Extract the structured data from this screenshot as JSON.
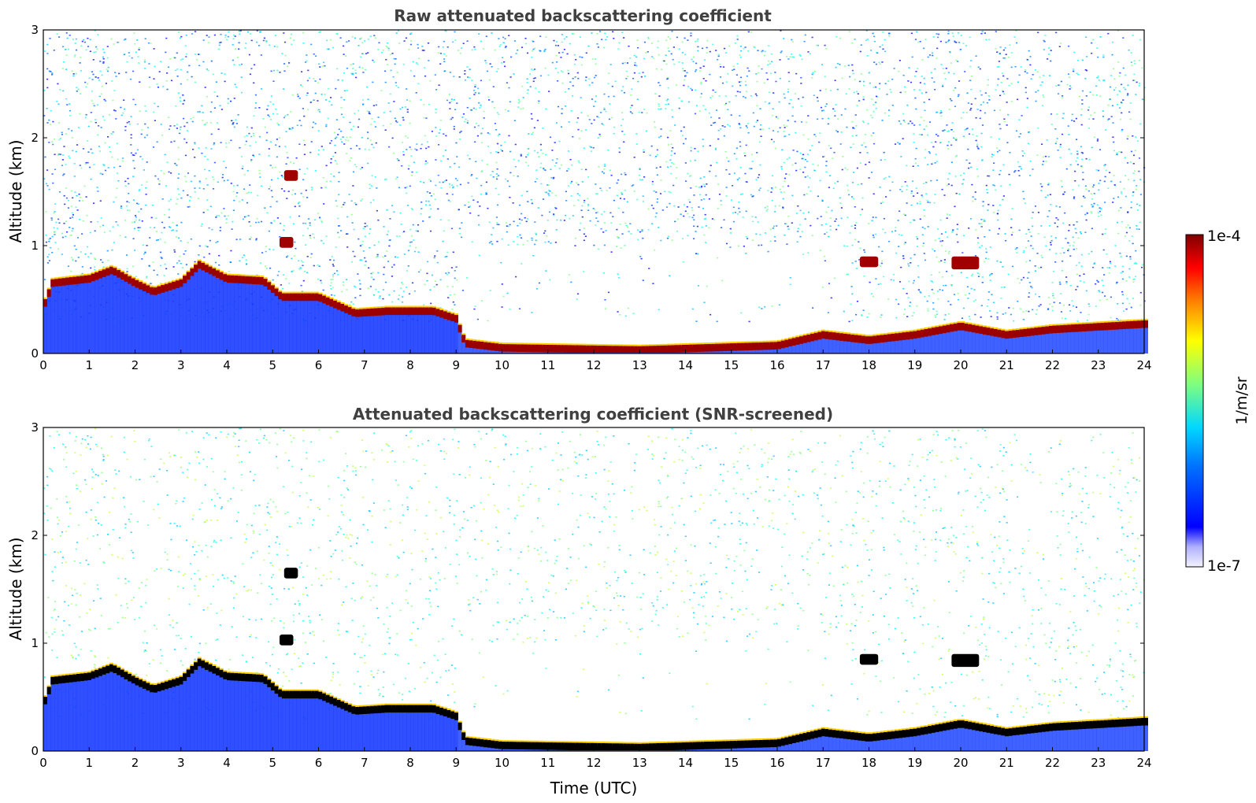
{
  "chart_data": [
    {
      "type": "heatmap",
      "title": "Raw attenuated backscattering coefficient",
      "xlabel": "",
      "ylabel": "Altitude (km)",
      "xlim": [
        0,
        24
      ],
      "ylim": [
        0,
        3
      ],
      "x_ticks": [
        "0",
        "1",
        "2",
        "3",
        "4",
        "5",
        "6",
        "7",
        "8",
        "9",
        "10",
        "11",
        "12",
        "13",
        "14",
        "15",
        "16",
        "17",
        "18",
        "19",
        "20",
        "21",
        "22",
        "23",
        "24"
      ],
      "y_ticks": [
        "0",
        "1",
        "2",
        "3"
      ],
      "layer_height_km": [
        {
          "t": 0,
          "h": 0.45
        },
        {
          "t": 0.2,
          "h": 0.68
        },
        {
          "t": 1.0,
          "h": 0.72
        },
        {
          "t": 1.5,
          "h": 0.8
        },
        {
          "t": 2.0,
          "h": 0.68
        },
        {
          "t": 2.4,
          "h": 0.6
        },
        {
          "t": 3.0,
          "h": 0.68
        },
        {
          "t": 3.4,
          "h": 0.85
        },
        {
          "t": 4.0,
          "h": 0.72
        },
        {
          "t": 4.8,
          "h": 0.7
        },
        {
          "t": 5.2,
          "h": 0.55
        },
        {
          "t": 6.0,
          "h": 0.55
        },
        {
          "t": 6.8,
          "h": 0.4
        },
        {
          "t": 7.5,
          "h": 0.42
        },
        {
          "t": 8.5,
          "h": 0.42
        },
        {
          "t": 9.0,
          "h": 0.35
        },
        {
          "t": 9.2,
          "h": 0.12
        },
        {
          "t": 10,
          "h": 0.08
        },
        {
          "t": 13,
          "h": 0.06
        },
        {
          "t": 16,
          "h": 0.1
        },
        {
          "t": 17,
          "h": 0.2
        },
        {
          "t": 18,
          "h": 0.15
        },
        {
          "t": 19,
          "h": 0.2
        },
        {
          "t": 20,
          "h": 0.28
        },
        {
          "t": 21,
          "h": 0.2
        },
        {
          "t": 22,
          "h": 0.25
        },
        {
          "t": 24,
          "h": 0.3
        }
      ],
      "features": [
        {
          "t_start": 5.25,
          "t_end": 5.55,
          "alt_min": 1.6,
          "alt_max": 1.7
        },
        {
          "t_start": 5.15,
          "t_end": 5.45,
          "alt_min": 0.98,
          "alt_max": 1.08
        },
        {
          "t_start": 17.8,
          "t_end": 18.2,
          "alt_min": 0.8,
          "alt_max": 0.9
        },
        {
          "t_start": 19.8,
          "t_end": 20.4,
          "alt_min": 0.78,
          "alt_max": 0.9
        }
      ]
    },
    {
      "type": "heatmap",
      "title": "Attenuated backscattering coefficient (SNR-screened)",
      "xlabel": "Time (UTC)",
      "ylabel": "Altitude (km)",
      "xlim": [
        0,
        24
      ],
      "ylim": [
        0,
        3
      ],
      "x_ticks": [
        "0",
        "1",
        "2",
        "3",
        "4",
        "5",
        "6",
        "7",
        "8",
        "9",
        "10",
        "11",
        "12",
        "13",
        "14",
        "15",
        "16",
        "17",
        "18",
        "19",
        "20",
        "21",
        "22",
        "23",
        "24"
      ],
      "y_ticks": [
        "0",
        "1",
        "2",
        "3"
      ],
      "layer_height_km": [
        {
          "t": 0,
          "h": 0.45
        },
        {
          "t": 0.2,
          "h": 0.68
        },
        {
          "t": 1.0,
          "h": 0.72
        },
        {
          "t": 1.5,
          "h": 0.8
        },
        {
          "t": 2.0,
          "h": 0.68
        },
        {
          "t": 2.4,
          "h": 0.6
        },
        {
          "t": 3.0,
          "h": 0.68
        },
        {
          "t": 3.4,
          "h": 0.85
        },
        {
          "t": 4.0,
          "h": 0.72
        },
        {
          "t": 4.8,
          "h": 0.7
        },
        {
          "t": 5.2,
          "h": 0.55
        },
        {
          "t": 6.0,
          "h": 0.55
        },
        {
          "t": 6.8,
          "h": 0.4
        },
        {
          "t": 7.5,
          "h": 0.42
        },
        {
          "t": 8.5,
          "h": 0.42
        },
        {
          "t": 9.0,
          "h": 0.35
        },
        {
          "t": 9.2,
          "h": 0.12
        },
        {
          "t": 10,
          "h": 0.08
        },
        {
          "t": 13,
          "h": 0.06
        },
        {
          "t": 16,
          "h": 0.1
        },
        {
          "t": 17,
          "h": 0.2
        },
        {
          "t": 18,
          "h": 0.15
        },
        {
          "t": 19,
          "h": 0.2
        },
        {
          "t": 20,
          "h": 0.28
        },
        {
          "t": 21,
          "h": 0.2
        },
        {
          "t": 22,
          "h": 0.25
        },
        {
          "t": 24,
          "h": 0.3
        }
      ],
      "features": [
        {
          "t_start": 5.25,
          "t_end": 5.55,
          "alt_min": 1.6,
          "alt_max": 1.7
        },
        {
          "t_start": 5.15,
          "t_end": 5.45,
          "alt_min": 0.98,
          "alt_max": 1.08
        },
        {
          "t_start": 17.8,
          "t_end": 18.2,
          "alt_min": 0.8,
          "alt_max": 0.9
        },
        {
          "t_start": 19.8,
          "t_end": 20.4,
          "alt_min": 0.78,
          "alt_max": 0.9
        }
      ]
    }
  ],
  "colorbar": {
    "label": "1/m/sr",
    "max_label": "1e-4",
    "min_label": "1e-7",
    "scale": "log",
    "colormap": "jet"
  }
}
